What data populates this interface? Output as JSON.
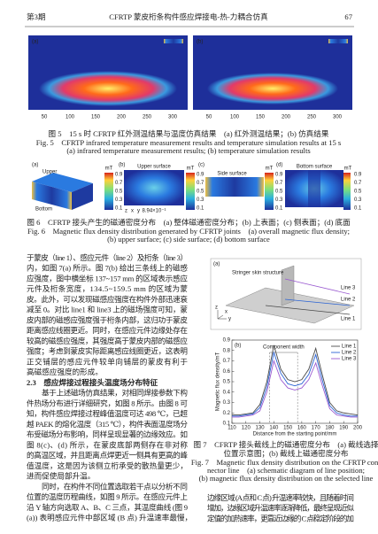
{
  "header": {
    "issue": "第3期",
    "title": "CFRTP 蒙皮桁条构件感应焊接电-热-力耦合仿真",
    "page": "67"
  },
  "fig5": {
    "panel_a": "(a)",
    "panel_b": "(b)",
    "x_ticks": [
      50,
      100,
      150,
      200,
      250,
      300
    ],
    "caption_cn": "图 5　15 s 时 CFRTP 红外测温结果与温度仿真结果　(a) 红外测温结果；(b) 仿真结果",
    "caption_en_1": "Fig. 5　CFRTP infrared temperature measurement results and temperature simulation results at 15 s",
    "caption_en_2": "(a) infrared temperature measurement results; (b) temperature simulation results"
  },
  "fig6": {
    "panel_a": "(a)",
    "panel_b": "(b)",
    "panel_c": "(c)",
    "panel_d": "(d)",
    "upper": "Upper",
    "bottom": "Bottom",
    "upper_surface": "Upper surface",
    "side_surface": "Side surface",
    "bottom_surface": "Bottom surface",
    "scale_note": "8.94×10⁻¹",
    "colorbar_unit": "mT",
    "colorbar_ticks": [
      0.9,
      0.7,
      0.5,
      0.3,
      0.1
    ],
    "axis_letters": [
      "z",
      "x",
      "y"
    ],
    "caption_cn": "图 6　CFRTP 接头产生的磁通密度分布　(a) 整体磁通密度分布；(b) 上表面；(c) 侧表面；(d) 底面",
    "caption_en_1": "Fig. 6　Magnetic flux density distribution generated by CFRTP joints　(a) overall magnetic flux density;",
    "caption_en_2": "(b) upper surface; (c) side surface; (d) bottom surface"
  },
  "left_column": {
    "paragraph_1": [
      "于蒙皮（line 1）、感应元件（line 2）及桁条（line 3）",
      "内，如图 7(a) 所示。图 7(b) 给出三条线上的磁感",
      "应强度，图中横坐标 137~157 mm 的区域表示感应",
      "元件及桁条宽度，134.5~159.5 mm 的区域为蒙",
      "皮。此外，可以发现磁感应强度在构件外部迅速衰",
      "减至 0。对比 line1 和 line3 上的磁场强度可知，蒙",
      "皮内部的磁感应强度强于桁条内部，这归功于蒙皮",
      "距离感应线圈更近。同时，在感应元件边缘处存在",
      "较高的磁感应强度，其强度高于蒙皮内部的磁感应",
      "强度；考虑到蒙皮实际距离感应线圈更近，这表明",
      "正交铺层的感应元件较单向铺层的蒙皮有利于",
      "高磁感应强度的形成。"
    ],
    "section_heading": "2.3　感应焊接过程接头温度场分布特征",
    "paragraph_2": [
      "基于上述磁场仿真结果，对相同焊接参数下构",
      "件热场分布进行详细研究，如图 8 所示。由图 8 可",
      "知，构件感应焊接过程峰值温度可达 498 ℃，已超",
      "越 PAEK 的熔化温度（315 ℃），构件表面温度场分",
      "布受磁场分布影响，同样呈现显著的边缘效应。如",
      "图 8(c)、(d) 所示，在蒙皮底部两侧存在非对称",
      "的高温区域，并且距离点焊更近一侧具有更高的峰",
      "值温度，这是因为该侧立桁承受的散热量更少，",
      "进而促使局部升温。"
    ],
    "paragraph_3": [
      "同时，在构件不同位置选取若干点以分析不同",
      "位置的温度历程曲线，如图 9 所示。在感应元件上",
      "沿 Y 轴方向选取 A、B、C 三点，其温度曲线 (图 9",
      "(a)) 表明感应元件中部区域 (B 点) 升温速率最慢，"
    ]
  },
  "fig7": {
    "panel_a": "(a)",
    "structure_label": "Stringer skin structure",
    "line_labels": [
      "Line 3",
      "Line 2",
      "Line 1"
    ],
    "axis_letters": [
      "z",
      "y",
      "x"
    ],
    "chart_data": {
      "type": "line",
      "panel": "(b)",
      "x_label": "Distance from the starting point/mm",
      "y_label": "Magnetic flux density/mT",
      "annotation": "Component width",
      "x": [
        110,
        115,
        120,
        125,
        130,
        135,
        140,
        145,
        150,
        155,
        160,
        165,
        170,
        175,
        180,
        185,
        190,
        195,
        200
      ],
      "series": [
        {
          "name": "Line 1",
          "color": "#4a4a4a",
          "values": [
            0.18,
            0.18,
            0.19,
            0.2,
            0.28,
            0.5,
            0.85,
            0.62,
            0.52,
            0.5,
            0.52,
            0.62,
            0.82,
            0.55,
            0.3,
            0.22,
            0.2,
            0.19,
            0.18
          ]
        },
        {
          "name": "Line 2",
          "color": "#2a63d4",
          "values": [
            0.17,
            0.17,
            0.18,
            0.19,
            0.25,
            0.45,
            0.78,
            0.58,
            0.48,
            0.46,
            0.48,
            0.57,
            0.76,
            0.5,
            0.27,
            0.2,
            0.18,
            0.17,
            0.17
          ]
        },
        {
          "name": "Line 3",
          "color": "#9a5ad0",
          "values": [
            0.16,
            0.16,
            0.17,
            0.18,
            0.22,
            0.4,
            0.7,
            0.52,
            0.44,
            0.42,
            0.44,
            0.52,
            0.68,
            0.45,
            0.24,
            0.18,
            0.17,
            0.16,
            0.16
          ]
        }
      ],
      "markers_x": [
        137,
        157
      ],
      "xlim": [
        110,
        200
      ],
      "xticks": [
        110,
        120,
        130,
        140,
        150,
        160,
        170,
        180,
        190,
        200
      ],
      "ylim": [
        0.1,
        0.9
      ],
      "yticks": [
        0.1,
        0.2,
        0.3,
        0.4,
        0.5,
        0.6,
        0.7,
        0.8,
        0.9
      ]
    },
    "caption_cn_1": "图 7　CFRTP 接头截线上的磁通密度分布　(a) 截线选择",
    "caption_cn_2": "位置示意图；(b) 截线上磁通密度分布",
    "caption_en_1": "Fig. 7　Magnetic flux density distribution on the CFRTP con-",
    "caption_en_2": "nector line　(a) schematic diagram of line position;",
    "caption_en_3": "(b) magnetic flux density distribution on the selected line"
  },
  "right_column": [
    "边缘区域 (A 点和 C 点) 升温速率较快，且随着时间",
    "增加，边缘区域升温速率逐渐降低，最终呈现近似",
    "定值的加热速率，更靠近边缘的 C 点稳定阶段的加"
  ]
}
